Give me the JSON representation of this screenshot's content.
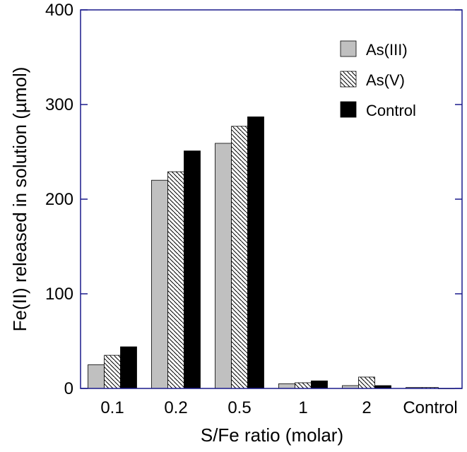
{
  "chart_data": {
    "type": "bar",
    "title": "",
    "xlabel": "S/Fe ratio (molar)",
    "ylabel": "Fe(II) released in solution (µmol)",
    "ylim": [
      0,
      400
    ],
    "yticks": [
      0,
      100,
      200,
      300,
      400
    ],
    "yticks_text": [
      "0",
      "100",
      "200",
      "300",
      "400"
    ],
    "categories": [
      "0.1",
      "0.2",
      "0.5",
      "1",
      "2",
      "Control"
    ],
    "series": [
      {
        "name": "As(III)",
        "values": [
          25,
          220,
          259,
          5,
          3,
          1
        ],
        "fill": "#c0c0c0",
        "pattern": "solid"
      },
      {
        "name": "As(V)",
        "values": [
          35,
          229,
          277,
          6,
          12,
          1
        ],
        "fill": "#ffffff",
        "pattern": "hatch"
      },
      {
        "name": "Control",
        "values": [
          44,
          251,
          287,
          8,
          3,
          0
        ],
        "fill": "#000000",
        "pattern": "solid"
      }
    ],
    "legend_position": "top-right",
    "grid": false,
    "colors": {
      "axis": "#1a1a8c",
      "bar_stroke": "#000000",
      "hatch": "#000000"
    }
  }
}
